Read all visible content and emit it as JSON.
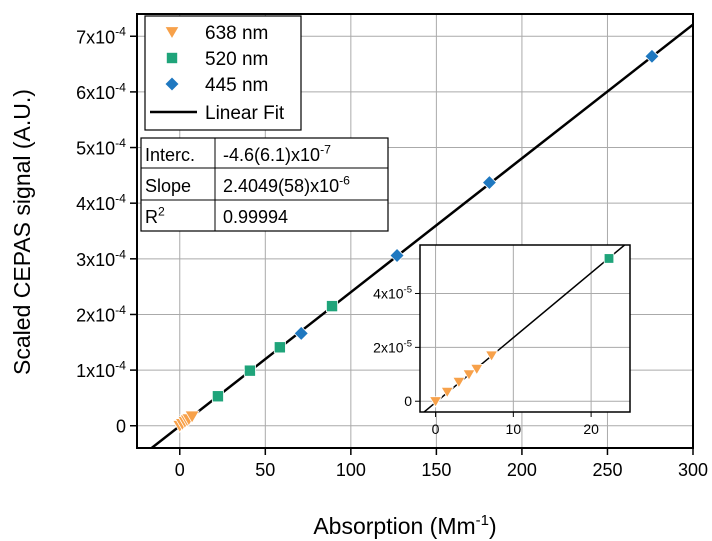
{
  "chart_data": {
    "type": "scatter",
    "xlabel": "Absorption (Mm",
    "xlabel_sup": "-1",
    "xlabel_end": ")",
    "ylabel": "Scaled CEPAS signal (A.U.)",
    "xlim": [
      -25,
      300
    ],
    "ylim": [
      -4e-05,
      0.00074
    ],
    "x_ticks": [
      0,
      50,
      100,
      150,
      200,
      250,
      300
    ],
    "x_tick_labels": [
      "0",
      "50",
      "100",
      "150",
      "200",
      "250",
      "300"
    ],
    "y_ticks": [
      0,
      0.0001,
      0.0002,
      0.0003,
      0.0004,
      0.0005,
      0.0006,
      0.0007
    ],
    "y_tick_labels": [
      {
        "base": "0",
        "exp": ""
      },
      {
        "base": "1x10",
        "exp": "-4"
      },
      {
        "base": "2x10",
        "exp": "-4"
      },
      {
        "base": "3x10",
        "exp": "-4"
      },
      {
        "base": "4x10",
        "exp": "-4"
      },
      {
        "base": "5x10",
        "exp": "-4"
      },
      {
        "base": "6x10",
        "exp": "-4"
      },
      {
        "base": "7x10",
        "exp": "-4"
      }
    ],
    "grid": true,
    "legend_position": "top-left",
    "series": [
      {
        "name": "638 nm",
        "marker": "triangle-down",
        "color": "#F7A14A",
        "x": [
          0,
          1.5,
          3.0,
          4.3,
          5.3,
          7.2
        ],
        "y": [
          0,
          3.5e-06,
          7.2e-06,
          1e-05,
          1.2e-05,
          1.7e-05
        ]
      },
      {
        "name": "520 nm",
        "marker": "square",
        "color": "#1FA47A",
        "x": [
          22.3,
          41,
          58.5,
          89
        ],
        "y": [
          5.3e-05,
          9.9e-05,
          0.000141,
          0.000215
        ]
      },
      {
        "name": "445 nm",
        "marker": "diamond",
        "color": "#1F78C0",
        "x": [
          71,
          127,
          181,
          276
        ],
        "y": [
          0.000166,
          0.000306,
          0.000437,
          0.000664
        ]
      }
    ],
    "fit": {
      "name": "Linear Fit",
      "intercept": -4.6e-07,
      "slope": 2.4049e-06,
      "color": "#000000"
    },
    "fit_table": [
      {
        "label": "Interc.",
        "value": "-4.6(6.1)x10",
        "exp": "-7"
      },
      {
        "label": "Slope",
        "value": "2.4049(58)x10",
        "exp": "-6"
      },
      {
        "label": "R",
        "label_sup": "2",
        "value": "0.99994",
        "exp": ""
      }
    ],
    "inset": {
      "xlim": [
        -2,
        25
      ],
      "ylim": [
        -4e-06,
        5.8e-05
      ],
      "x_ticks": [
        0,
        10,
        20
      ],
      "x_tick_labels": [
        "0",
        "10",
        "20"
      ],
      "y_ticks": [
        0,
        2e-05,
        4e-05
      ],
      "y_tick_labels": [
        {
          "base": "0",
          "exp": ""
        },
        {
          "base": "2x10",
          "exp": "-5"
        },
        {
          "base": "4x10",
          "exp": "-5"
        }
      ],
      "grid": true
    }
  }
}
